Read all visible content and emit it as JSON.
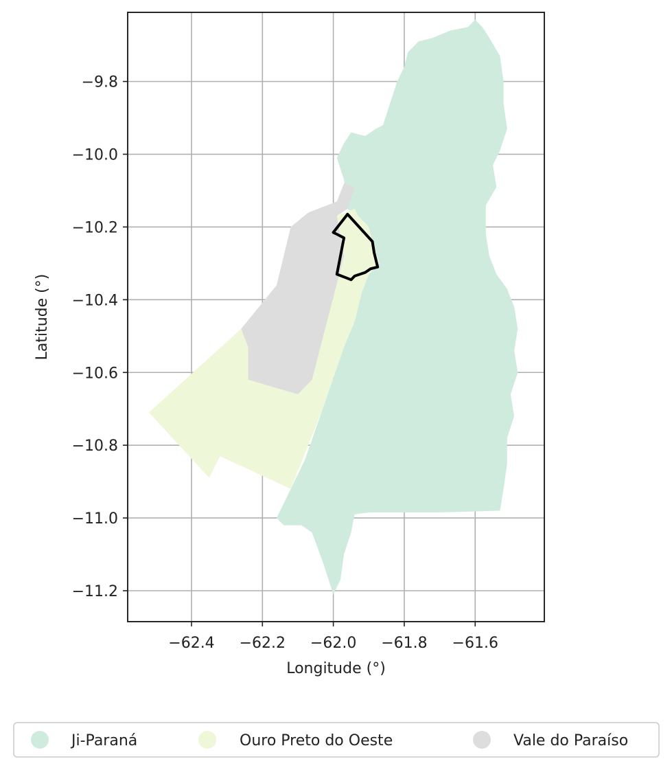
{
  "chart_data": {
    "type": "choropleth-map",
    "xlabel": "Longitude (°)",
    "ylabel": "Latitude (°)",
    "xlim": [
      -62.58,
      -61.405
    ],
    "ylim": [
      -11.285,
      -9.61
    ],
    "grid": true,
    "x_ticks": [
      {
        "value": -62.4,
        "label": "−62.4"
      },
      {
        "value": -62.2,
        "label": "−62.2"
      },
      {
        "value": -62.0,
        "label": "−62.0"
      },
      {
        "value": -61.8,
        "label": "−61.8"
      },
      {
        "value": -61.6,
        "label": "−61.6"
      }
    ],
    "y_ticks": [
      {
        "value": -9.8,
        "label": "−9.8"
      },
      {
        "value": -10.0,
        "label": "−10.0"
      },
      {
        "value": -10.2,
        "label": "−10.2"
      },
      {
        "value": -10.4,
        "label": "−10.4"
      },
      {
        "value": -10.6,
        "label": "−10.6"
      },
      {
        "value": -10.8,
        "label": "−10.8"
      },
      {
        "value": -11.0,
        "label": "−11.0"
      },
      {
        "value": -11.2,
        "label": "−11.2"
      }
    ],
    "legend_placement": "bottom",
    "regions": [
      {
        "name": "Ji-Paraná",
        "color": "#cfebdd",
        "coords": [
          [
            -61.79,
            -9.72
          ],
          [
            -61.76,
            -9.69
          ],
          [
            -61.72,
            -9.68
          ],
          [
            -61.67,
            -9.66
          ],
          [
            -61.62,
            -9.65
          ],
          [
            -61.6,
            -9.63
          ],
          [
            -61.58,
            -9.65
          ],
          [
            -61.56,
            -9.68
          ],
          [
            -61.53,
            -9.73
          ],
          [
            -61.52,
            -9.8
          ],
          [
            -61.52,
            -9.86
          ],
          [
            -61.51,
            -9.93
          ],
          [
            -61.53,
            -9.99
          ],
          [
            -61.55,
            -10.03
          ],
          [
            -61.54,
            -10.09
          ],
          [
            -61.57,
            -10.14
          ],
          [
            -61.57,
            -10.22
          ],
          [
            -61.56,
            -10.28
          ],
          [
            -61.54,
            -10.33
          ],
          [
            -61.51,
            -10.37
          ],
          [
            -61.49,
            -10.42
          ],
          [
            -61.48,
            -10.48
          ],
          [
            -61.49,
            -10.54
          ],
          [
            -61.48,
            -10.6
          ],
          [
            -61.5,
            -10.66
          ],
          [
            -61.49,
            -10.72
          ],
          [
            -61.51,
            -10.78
          ],
          [
            -61.51,
            -10.85
          ],
          [
            -61.52,
            -10.92
          ],
          [
            -61.53,
            -10.98
          ],
          [
            -61.71,
            -10.985
          ],
          [
            -61.9,
            -10.985
          ],
          [
            -61.94,
            -10.99
          ],
          [
            -61.95,
            -11.04
          ],
          [
            -61.97,
            -11.1
          ],
          [
            -61.98,
            -11.17
          ],
          [
            -62.0,
            -11.21
          ],
          [
            -62.03,
            -11.12
          ],
          [
            -62.06,
            -11.04
          ],
          [
            -62.09,
            -11.02
          ],
          [
            -62.14,
            -11.02
          ],
          [
            -62.16,
            -11.0
          ],
          [
            -62.12,
            -10.92
          ],
          [
            -62.08,
            -10.84
          ],
          [
            -62.03,
            -10.7
          ],
          [
            -61.97,
            -10.53
          ],
          [
            -61.94,
            -10.46
          ],
          [
            -61.92,
            -10.38
          ],
          [
            -61.9,
            -10.33
          ],
          [
            -61.87,
            -10.3
          ],
          [
            -61.89,
            -10.24
          ],
          [
            -61.9,
            -10.2
          ],
          [
            -61.93,
            -10.17
          ],
          [
            -61.96,
            -10.15
          ],
          [
            -61.97,
            -10.07
          ],
          [
            -61.99,
            -10.01
          ],
          [
            -61.97,
            -9.97
          ],
          [
            -61.95,
            -9.94
          ],
          [
            -61.91,
            -9.95
          ],
          [
            -61.88,
            -9.93
          ],
          [
            -61.86,
            -9.92
          ],
          [
            -61.84,
            -9.86
          ],
          [
            -61.82,
            -9.8
          ],
          [
            -61.8,
            -9.76
          ]
        ]
      },
      {
        "name": "Ouro Preto do Oeste",
        "color": "#eef8d8",
        "coords": [
          [
            -61.94,
            -10.15
          ],
          [
            -61.99,
            -10.17
          ],
          [
            -61.97,
            -10.28
          ],
          [
            -62.06,
            -10.62
          ],
          [
            -62.16,
            -10.6
          ],
          [
            -62.26,
            -10.48
          ],
          [
            -62.52,
            -10.71
          ],
          [
            -62.35,
            -10.89
          ],
          [
            -62.32,
            -10.83
          ],
          [
            -62.12,
            -10.92
          ],
          [
            -62.03,
            -10.7
          ],
          [
            -61.97,
            -10.53
          ],
          [
            -61.94,
            -10.46
          ],
          [
            -61.92,
            -10.38
          ],
          [
            -61.9,
            -10.33
          ],
          [
            -61.87,
            -10.3
          ],
          [
            -61.89,
            -10.24
          ],
          [
            -61.9,
            -10.2
          ],
          [
            -61.93,
            -10.17
          ]
        ]
      },
      {
        "name": "Vale do Paraíso",
        "color": "#dddddd",
        "coords": [
          [
            -61.94,
            -10.09
          ],
          [
            -61.97,
            -10.08
          ],
          [
            -61.99,
            -10.13
          ],
          [
            -62.07,
            -10.16
          ],
          [
            -62.12,
            -10.2
          ],
          [
            -62.14,
            -10.28
          ],
          [
            -62.16,
            -10.36
          ],
          [
            -62.26,
            -10.48
          ],
          [
            -62.24,
            -10.53
          ],
          [
            -62.24,
            -10.62
          ],
          [
            -62.1,
            -10.66
          ],
          [
            -62.06,
            -10.62
          ],
          [
            -61.97,
            -10.28
          ],
          [
            -61.99,
            -10.17
          ],
          [
            -61.96,
            -10.15
          ]
        ]
      }
    ],
    "highlight_outline": {
      "color": "#000000",
      "coords": [
        [
          -61.96,
          -10.165
        ],
        [
          -62.0,
          -10.215
        ],
        [
          -61.99,
          -10.22
        ],
        [
          -61.97,
          -10.23
        ],
        [
          -61.99,
          -10.33
        ],
        [
          -61.95,
          -10.345
        ],
        [
          -61.94,
          -10.335
        ],
        [
          -61.91,
          -10.325
        ],
        [
          -61.895,
          -10.315
        ],
        [
          -61.875,
          -10.31
        ],
        [
          -61.885,
          -10.27
        ],
        [
          -61.89,
          -10.24
        ]
      ]
    }
  }
}
